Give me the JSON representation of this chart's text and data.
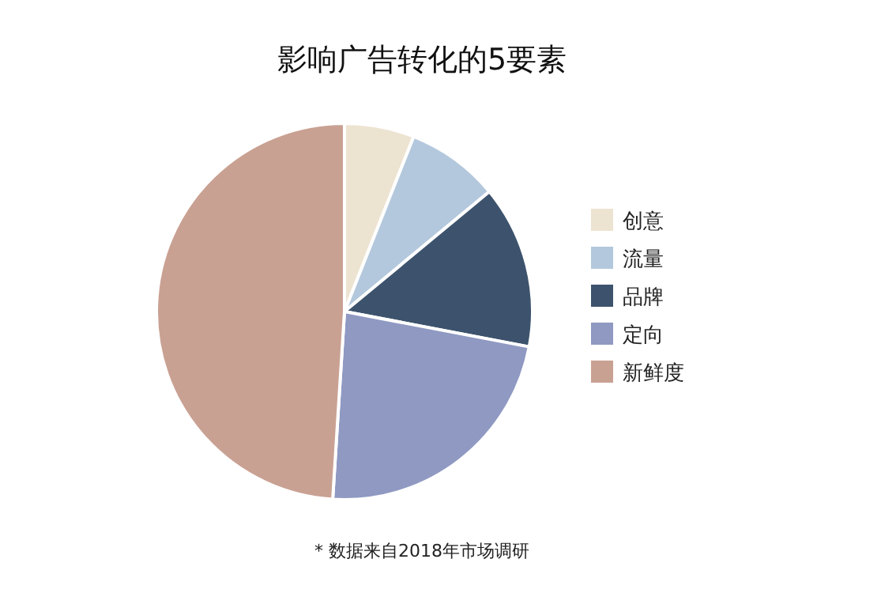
{
  "chart_data": {
    "type": "pie",
    "title": "影响广告转化的5要素",
    "categories": [
      "创意",
      "流量",
      "品牌",
      "定向",
      "新鲜度"
    ],
    "values": [
      6,
      8,
      14,
      23,
      49
    ],
    "colors": [
      "#ede3d1",
      "#b3c8dc",
      "#3d536d",
      "#8f99c2",
      "#c9a193"
    ],
    "legend": "right",
    "annotations": [
      "* 数据来自2018年市场调研"
    ]
  }
}
